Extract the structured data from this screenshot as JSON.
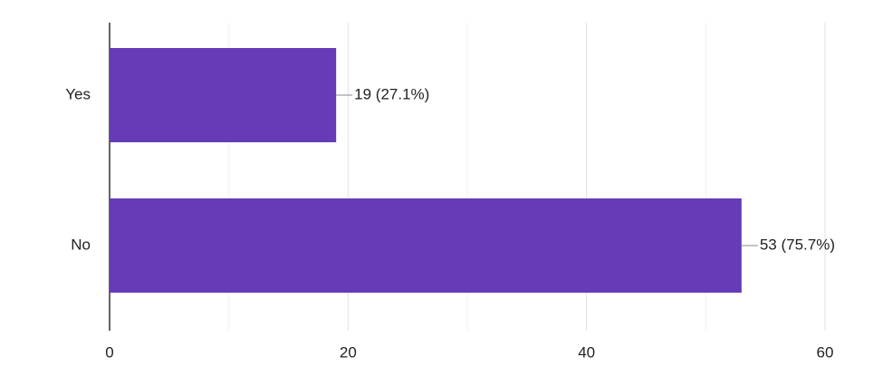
{
  "chart_data": {
    "type": "bar",
    "orientation": "horizontal",
    "categories": [
      "Yes",
      "No"
    ],
    "values": [
      19,
      53
    ],
    "value_labels": [
      "19 (27.1%)",
      "53 (75.7%)"
    ],
    "color": "#673ab7",
    "xlim": [
      0,
      60
    ],
    "xticks": [
      0,
      20,
      40,
      60
    ],
    "minor_xticks": [
      10,
      30,
      50
    ],
    "grid": true
  }
}
